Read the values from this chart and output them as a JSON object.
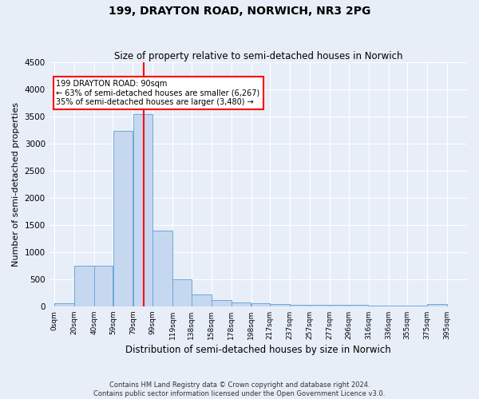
{
  "title": "199, DRAYTON ROAD, NORWICH, NR3 2PG",
  "subtitle": "Size of property relative to semi-detached houses in Norwich",
  "xlabel": "Distribution of semi-detached houses by size in Norwich",
  "ylabel": "Number of semi-detached properties",
  "footer_line1": "Contains HM Land Registry data © Crown copyright and database right 2024.",
  "footer_line2": "Contains public sector information licensed under the Open Government Licence v3.0.",
  "bar_left_edges": [
    0,
    20,
    40,
    59,
    79,
    99,
    119,
    138,
    158,
    178,
    198,
    217,
    237,
    257,
    277,
    296,
    316,
    336,
    355,
    375
  ],
  "bar_widths": [
    20,
    20,
    19,
    20,
    20,
    20,
    19,
    20,
    20,
    20,
    19,
    20,
    20,
    20,
    19,
    20,
    20,
    19,
    20,
    20
  ],
  "bar_heights": [
    60,
    750,
    750,
    3230,
    3550,
    1400,
    500,
    220,
    110,
    70,
    50,
    35,
    30,
    30,
    30,
    20,
    15,
    10,
    5,
    35
  ],
  "tick_labels": [
    "0sqm",
    "20sqm",
    "40sqm",
    "59sqm",
    "79sqm",
    "99sqm",
    "119sqm",
    "138sqm",
    "158sqm",
    "178sqm",
    "198sqm",
    "217sqm",
    "237sqm",
    "257sqm",
    "277sqm",
    "296sqm",
    "316sqm",
    "336sqm",
    "355sqm",
    "375sqm",
    "395sqm"
  ],
  "tick_positions": [
    0,
    20,
    40,
    59,
    79,
    99,
    119,
    138,
    158,
    178,
    198,
    217,
    237,
    257,
    277,
    296,
    316,
    336,
    355,
    375,
    395
  ],
  "bar_color": "#c5d8f0",
  "bar_edge_color": "#6ea8d8",
  "marker_x": 90,
  "marker_color": "red",
  "annotation_text1": "199 DRAYTON ROAD: 90sqm",
  "annotation_text2": "← 63% of semi-detached houses are smaller (6,267)",
  "annotation_text3": "35% of semi-detached houses are larger (3,480) →",
  "ylim": [
    0,
    4500
  ],
  "xlim": [
    -5,
    415
  ],
  "background_color": "#e8eef8",
  "plot_bg_color": "#e8eef8",
  "grid_color": "white",
  "title_fontsize": 10,
  "subtitle_fontsize": 8.5,
  "ylabel_fontsize": 8,
  "xlabel_fontsize": 8.5
}
